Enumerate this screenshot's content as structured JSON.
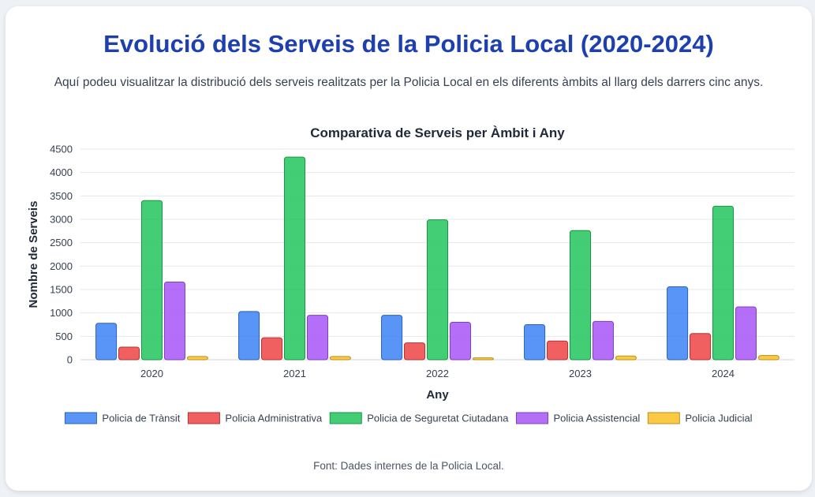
{
  "page": {
    "title": "Evolució dels Serveis de la Policia Local (2020-2024)",
    "subtitle": "Aquí podeu visualitzar la distribució dels serveis realitzats per la Policia Local en els diferents àmbits al llarg dels darrers cinc anys.",
    "footer": "Font: Dades internes de la Policia Local."
  },
  "chart_data": {
    "type": "bar",
    "title": "Comparativa de Serveis per Àmbit i Any",
    "xlabel": "Any",
    "ylabel": "Nombre de Serveis",
    "categories": [
      "2020",
      "2021",
      "2022",
      "2023",
      "2024"
    ],
    "ylim": [
      0,
      4500
    ],
    "yticks": [
      0,
      500,
      1000,
      1500,
      2000,
      2500,
      3000,
      3500,
      4000,
      4500
    ],
    "grid": true,
    "legend_position": "bottom",
    "series": [
      {
        "name": "Policia de Trànsit",
        "color": "#3b82f6",
        "values": [
          780,
          1030,
          950,
          750,
          1560
        ]
      },
      {
        "name": "Policia Administrativa",
        "color": "#ef4444",
        "values": [
          270,
          470,
          360,
          400,
          560
        ]
      },
      {
        "name": "Policia de Seguretat Ciutadana",
        "color": "#22c55e",
        "values": [
          3400,
          4330,
          2990,
          2760,
          3280
        ]
      },
      {
        "name": "Policia Assistencial",
        "color": "#a855f7",
        "values": [
          1660,
          950,
          800,
          820,
          1130
        ]
      },
      {
        "name": "Policia Judicial",
        "color": "#fbbf24",
        "values": [
          70,
          70,
          40,
          80,
          90
        ]
      }
    ]
  }
}
